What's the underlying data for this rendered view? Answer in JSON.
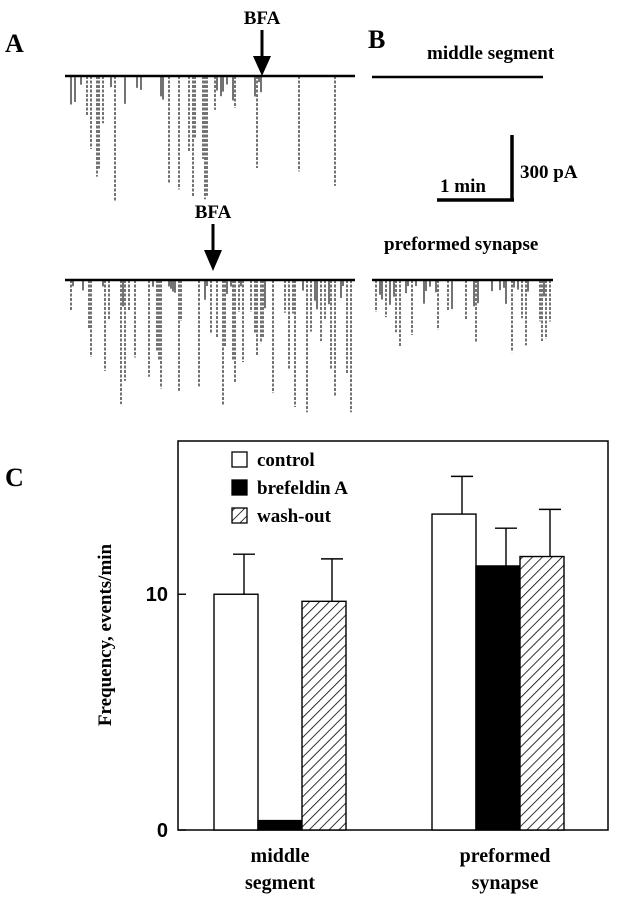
{
  "panels": {
    "a": {
      "letter": "A",
      "annotation_top": "BFA",
      "annotation_bottom": "BFA"
    },
    "b": {
      "letter": "B",
      "label_top": "middle segment",
      "label_bottom": "preformed synapse",
      "scalebar": {
        "time": "1 min",
        "amplitude": "300 pA"
      }
    },
    "c": {
      "letter": "C"
    }
  },
  "chart_data": {
    "type": "bar",
    "categories": [
      "middle segment",
      "preformed synapse"
    ],
    "category_lines": [
      [
        "middle",
        "segment"
      ],
      [
        "preformed",
        "synapse"
      ]
    ],
    "series": [
      {
        "name": "control",
        "values": [
          10.0,
          13.4
        ],
        "errors": [
          1.7,
          1.6
        ],
        "fill": "white"
      },
      {
        "name": "brefeldin A",
        "values": [
          0.4,
          11.2
        ],
        "errors": [
          0.0,
          1.6
        ],
        "fill": "black"
      },
      {
        "name": "wash-out",
        "values": [
          9.7,
          11.6
        ],
        "errors": [
          1.8,
          2.0
        ],
        "fill": "hatch"
      }
    ],
    "ylabel": "Frequency, events/min",
    "yticks": [
      0,
      10
    ],
    "ylim": [
      0,
      16.5
    ],
    "legend": "top-left"
  }
}
